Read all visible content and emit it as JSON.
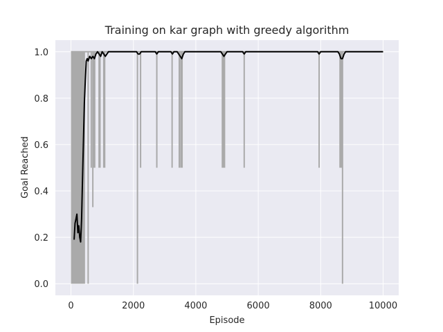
{
  "chart_data": {
    "type": "line",
    "title": "Training on kar graph with greedy algorithm",
    "xlabel": "Episode",
    "ylabel": "Goal Reached",
    "xlim": [
      -500,
      10500
    ],
    "ylim": [
      -0.05,
      1.05
    ],
    "xticks": [
      0,
      2000,
      4000,
      6000,
      8000,
      10000
    ],
    "xtick_labels": [
      "0",
      "2000",
      "4000",
      "6000",
      "8000",
      "10000"
    ],
    "yticks": [
      0.0,
      0.2,
      0.4,
      0.6,
      0.8,
      1.0
    ],
    "ytick_labels": [
      "0.0",
      "0.2",
      "0.4",
      "0.6",
      "0.8",
      "1.0"
    ],
    "grid": true,
    "background": "#eaeaf2",
    "series": [
      {
        "role": "raw",
        "color": "#aaaaaa",
        "x_range": [
          0,
          10000
        ],
        "dense_oscillation": {
          "x": [
            0,
            450
          ],
          "low": 0.0,
          "high": 1.0
        },
        "dips": [
          {
            "x": 550,
            "y": 0.0
          },
          {
            "x": 650,
            "y": 0.5
          },
          {
            "x": 700,
            "y": 0.33
          },
          {
            "x": 720,
            "y": 0.5
          },
          {
            "x": 760,
            "y": 0.5
          },
          {
            "x": 900,
            "y": 0.5
          },
          {
            "x": 930,
            "y": 0.5
          },
          {
            "x": 1050,
            "y": 0.5
          },
          {
            "x": 1080,
            "y": 0.5
          },
          {
            "x": 2130,
            "y": 0.0
          },
          {
            "x": 2230,
            "y": 0.5
          },
          {
            "x": 2750,
            "y": 0.5
          },
          {
            "x": 3240,
            "y": 0.5
          },
          {
            "x": 3470,
            "y": 0.5
          },
          {
            "x": 3520,
            "y": 0.5
          },
          {
            "x": 3560,
            "y": 0.5
          },
          {
            "x": 4850,
            "y": 0.5
          },
          {
            "x": 4880,
            "y": 0.5
          },
          {
            "x": 4920,
            "y": 0.5
          },
          {
            "x": 5550,
            "y": 0.5
          },
          {
            "x": 7950,
            "y": 0.5
          },
          {
            "x": 8620,
            "y": 0.5
          },
          {
            "x": 8660,
            "y": 0.5
          },
          {
            "x": 8700,
            "y": 0.0
          }
        ]
      },
      {
        "role": "moving-average",
        "color": "#000000",
        "x": [
          100,
          130,
          160,
          190,
          220,
          250,
          280,
          310,
          340,
          370,
          400,
          430,
          460,
          490,
          520,
          550,
          600,
          650,
          700,
          750,
          800,
          850,
          900,
          950,
          1000,
          1050,
          1100,
          1200,
          2100,
          2150,
          2200,
          2250,
          2300,
          2700,
          2750,
          2800,
          3200,
          3250,
          3300,
          3400,
          3450,
          3500,
          3550,
          3600,
          3650,
          4800,
          4850,
          4900,
          4950,
          5000,
          5500,
          5550,
          5600,
          7900,
          7950,
          8000,
          8550,
          8600,
          8650,
          8700,
          8750,
          8800,
          10000
        ],
        "y": [
          0.19,
          0.26,
          0.28,
          0.3,
          0.22,
          0.25,
          0.2,
          0.18,
          0.28,
          0.45,
          0.62,
          0.78,
          0.88,
          0.96,
          0.97,
          0.96,
          0.98,
          0.97,
          0.98,
          0.97,
          0.99,
          1.0,
          0.99,
          0.98,
          1.0,
          0.99,
          0.98,
          1.0,
          1.0,
          0.99,
          0.99,
          1.0,
          1.0,
          1.0,
          0.99,
          1.0,
          1.0,
          0.99,
          1.0,
          1.0,
          0.99,
          0.98,
          0.97,
          0.99,
          1.0,
          1.0,
          0.99,
          0.98,
          0.99,
          1.0,
          1.0,
          0.99,
          1.0,
          1.0,
          0.99,
          1.0,
          1.0,
          0.99,
          0.97,
          0.97,
          0.99,
          1.0,
          1.0
        ]
      }
    ]
  }
}
